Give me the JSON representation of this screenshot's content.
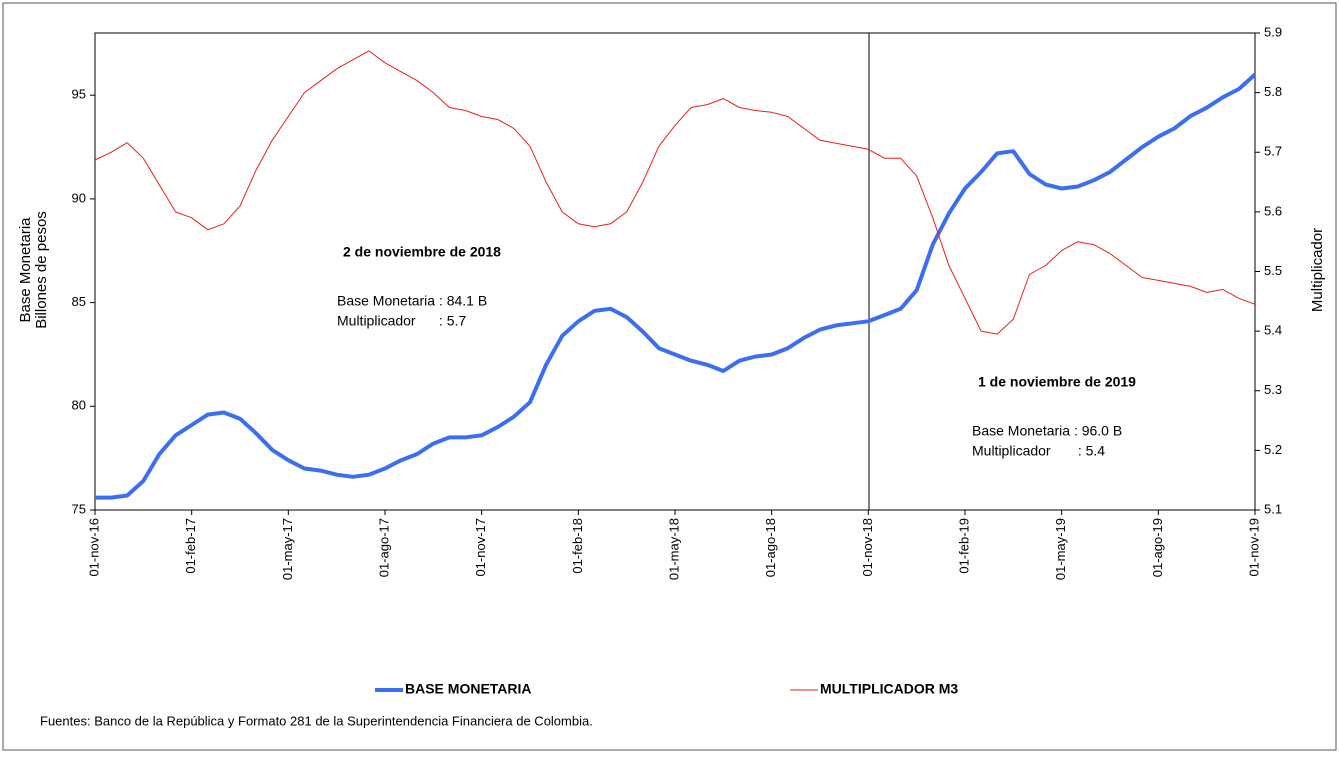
{
  "chart_data": {
    "type": "line",
    "categories": [
      "01-nov-16",
      null,
      null,
      null,
      null,
      null,
      "01-feb-17",
      null,
      null,
      null,
      null,
      null,
      "01-may-17",
      null,
      null,
      null,
      null,
      null,
      "01-ago-17",
      null,
      null,
      null,
      null,
      null,
      "01-nov-17",
      null,
      null,
      null,
      null,
      null,
      "01-feb-18",
      null,
      null,
      null,
      null,
      null,
      "01-may-18",
      null,
      null,
      null,
      null,
      null,
      "01-ago-18",
      null,
      null,
      null,
      null,
      null,
      "01-nov-18",
      null,
      null,
      null,
      null,
      null,
      "01-feb-19",
      null,
      null,
      null,
      null,
      null,
      "01-may-19",
      null,
      null,
      null,
      null,
      null,
      "01-ago-19",
      null,
      null,
      null,
      null,
      null,
      "01-nov-19"
    ],
    "series": [
      {
        "name": "BASE MONETARIA",
        "color": "#3c6ef0",
        "axis": "y",
        "values": [
          75.6,
          75.6,
          75.7,
          76.4,
          77.7,
          78.6,
          79.1,
          79.6,
          79.7,
          79.4,
          78.7,
          77.9,
          77.4,
          77.0,
          76.9,
          76.7,
          76.6,
          76.7,
          77.0,
          77.4,
          77.7,
          78.2,
          78.5,
          78.5,
          78.6,
          79.0,
          79.5,
          80.2,
          82.0,
          83.4,
          84.1,
          84.6,
          84.7,
          84.3,
          83.6,
          82.8,
          82.5,
          82.2,
          82.0,
          81.7,
          82.2,
          82.4,
          82.5,
          82.8,
          83.3,
          83.7,
          83.9,
          84.0,
          84.1,
          84.4,
          84.7,
          85.6,
          87.8,
          89.3,
          90.5,
          91.3,
          92.2,
          92.3,
          91.2,
          90.7,
          90.5,
          90.6,
          90.9,
          91.3,
          91.9,
          92.5,
          93.0,
          93.4,
          94.0,
          94.4,
          94.9,
          95.3,
          96.0
        ]
      },
      {
        "name": "MULTIPLICADOR M3",
        "color": "#e8201a",
        "axis": "y2",
        "values": [
          5.687,
          5.7,
          5.716,
          5.69,
          5.645,
          5.6,
          5.59,
          5.57,
          5.58,
          5.61,
          5.67,
          5.72,
          5.76,
          5.8,
          5.82,
          5.84,
          5.855,
          5.87,
          5.85,
          5.835,
          5.82,
          5.8,
          5.775,
          5.77,
          5.76,
          5.755,
          5.74,
          5.71,
          5.65,
          5.6,
          5.58,
          5.575,
          5.58,
          5.6,
          5.65,
          5.71,
          5.745,
          5.775,
          5.78,
          5.79,
          5.775,
          5.77,
          5.767,
          5.76,
          5.74,
          5.72,
          5.715,
          5.71,
          5.705,
          5.69,
          5.69,
          5.66,
          5.59,
          5.51,
          5.455,
          5.4,
          5.395,
          5.42,
          5.495,
          5.51,
          5.535,
          5.55,
          5.545,
          5.53,
          5.51,
          5.49,
          5.485,
          5.48,
          5.475,
          5.465,
          5.47,
          5.455,
          5.445
        ]
      }
    ],
    "ylabel": [
      "Base Monetaria",
      "Billones de pesos"
    ],
    "y2label": "Multiplicador",
    "ylim": [
      75,
      98
    ],
    "yticks": [
      75,
      80,
      85,
      90,
      95
    ],
    "y2lim": [
      5.1,
      5.9
    ],
    "y2ticks": [
      5.1,
      5.2,
      5.3,
      5.4,
      5.5,
      5.6,
      5.7,
      5.8,
      5.9
    ],
    "annotations": [
      {
        "title": "2 de noviembre de 2018",
        "lines": [
          "Base Monetaria : 84.1 B",
          "Multiplicador      : 5.7"
        ]
      },
      {
        "title": "1 de noviembre de 2019",
        "lines": [
          "Base Monetaria : 96.0 B",
          "Multiplicador       : 5.4"
        ]
      }
    ],
    "source": "Fuentes: Banco de la República y Formato 281 de la Superintendencia Financiera de Colombia."
  }
}
